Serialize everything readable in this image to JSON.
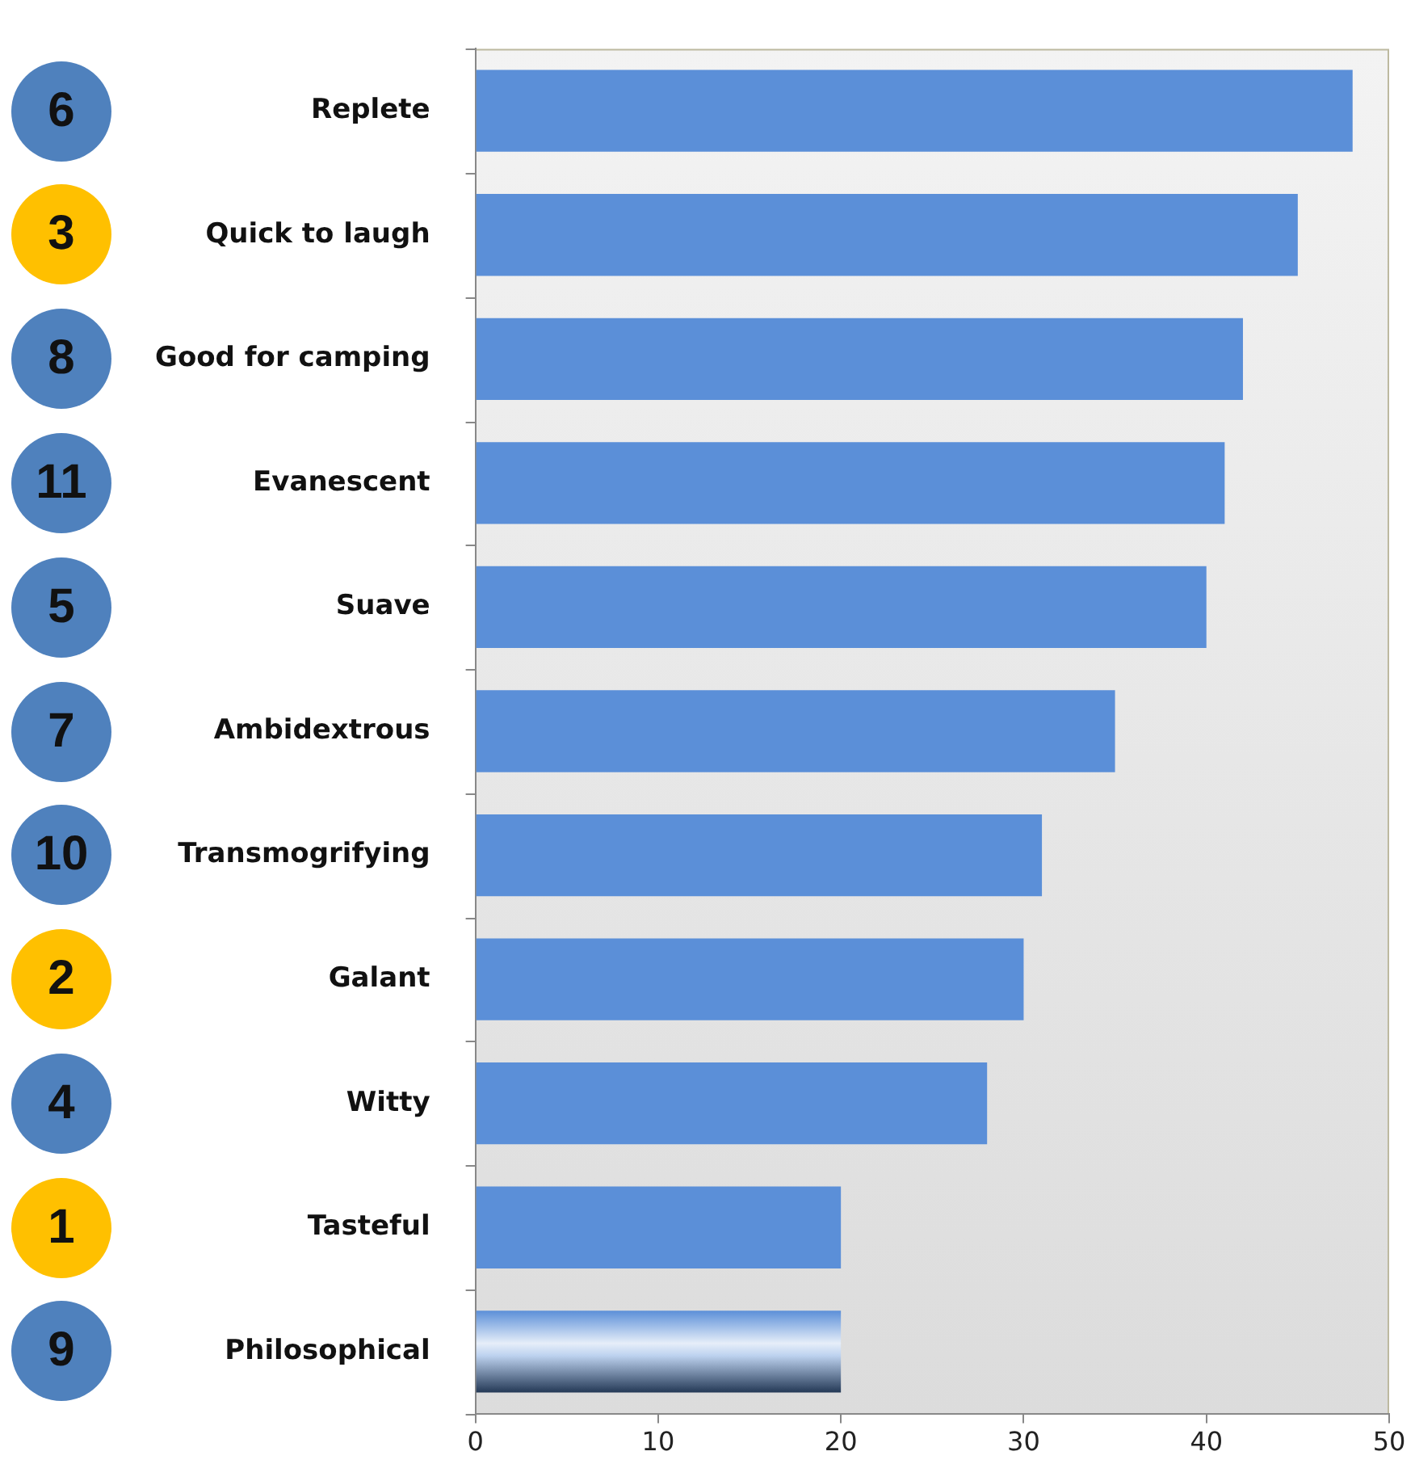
{
  "chart_data": {
    "type": "bar",
    "orientation": "horizontal",
    "categories": [
      "Replete",
      "Quick to laugh",
      "Good for camping",
      "Evanescent",
      "Suave",
      "Ambidextrous",
      "Transmogrifying",
      "Galant",
      "Witty",
      "Tasteful",
      "Philosophical"
    ],
    "values": [
      48,
      45,
      42,
      41,
      40,
      35,
      31,
      30,
      28,
      20,
      20
    ],
    "color": "#5b8fd8",
    "xlim": [
      0,
      50
    ],
    "xticks": [
      0,
      10,
      20,
      30,
      40,
      50
    ],
    "grid": false,
    "legend": false,
    "annotations": [
      "6",
      "3",
      "8",
      "11",
      "5",
      "7",
      "10",
      "2",
      "4",
      "1",
      "9"
    ]
  }
}
